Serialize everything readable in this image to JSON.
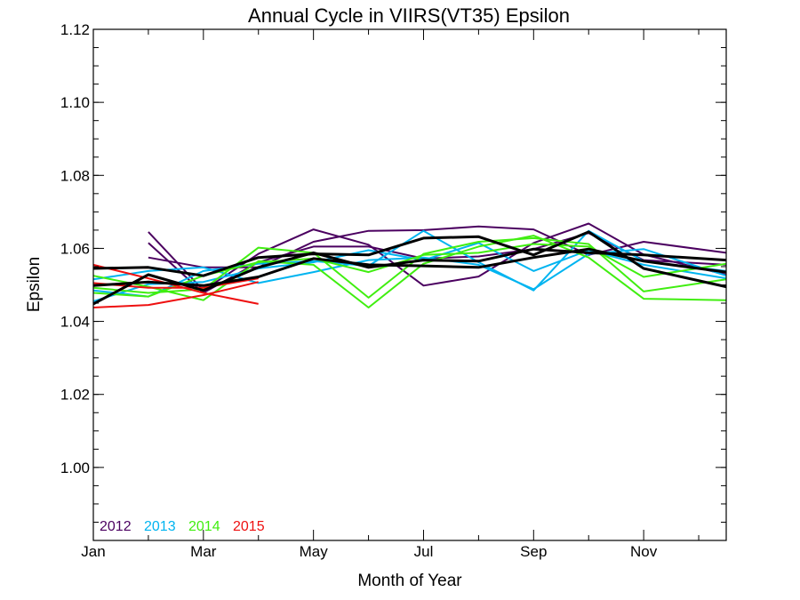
{
  "chart_data": {
    "type": "line",
    "title": "Annual Cycle in VIIRS(VT35) Epsilon",
    "xlabel": "Month of Year",
    "ylabel": "Epsilon",
    "xlim": [
      1,
      12.5
    ],
    "ylim": [
      0.98,
      1.12
    ],
    "x_ticks": [
      {
        "value": 1,
        "label": "Jan"
      },
      {
        "value": 3,
        "label": "Mar"
      },
      {
        "value": 5,
        "label": "May"
      },
      {
        "value": 7,
        "label": "Jul"
      },
      {
        "value": 9,
        "label": "Sep"
      },
      {
        "value": 11,
        "label": "Nov"
      }
    ],
    "x_minor_ticks": [
      2,
      4,
      6,
      8,
      10,
      12
    ],
    "y_ticks": [
      1.0,
      1.02,
      1.04,
      1.06,
      1.08,
      1.1,
      1.12
    ],
    "y_tick_labels": [
      "1.00",
      "1.02",
      "1.04",
      "1.06",
      "1.08",
      "1.10",
      "1.12"
    ],
    "y_minor_step": 0.005,
    "grid": false,
    "legend": {
      "placement": "bottom-left",
      "entries": [
        {
          "label": "2012",
          "color": "#4b0060"
        },
        {
          "label": "2013",
          "color": "#00b4f0"
        },
        {
          "label": "2014",
          "color": "#40ee10"
        },
        {
          "label": "2015",
          "color": "#ee1010"
        }
      ]
    },
    "series": [
      {
        "year": "2012",
        "color": "#4b0060",
        "x": [
          2,
          3,
          4,
          5,
          6,
          7,
          8,
          9,
          10,
          11,
          12.5
        ],
        "values": [
          1.0645,
          1.0485,
          1.0585,
          1.0652,
          1.061,
          1.0498,
          1.0523,
          1.0615,
          1.0668,
          1.0583,
          1.0528
        ]
      },
      {
        "year": "2012",
        "color": "#4b0060",
        "x": [
          2,
          3,
          4,
          5,
          6,
          7,
          8,
          9,
          10,
          11,
          12.5
        ],
        "values": [
          1.0615,
          1.0478,
          1.0562,
          1.0605,
          1.0605,
          1.0572,
          1.0578,
          1.0598,
          1.0642,
          1.0568,
          1.0555
        ]
      },
      {
        "year": "2012",
        "color": "#4b0060",
        "x": [
          2,
          3,
          4,
          5,
          6,
          7,
          8,
          9,
          10,
          11,
          12.5
        ],
        "values": [
          1.0575,
          1.0548,
          1.0548,
          1.0618,
          1.0648,
          1.065,
          1.066,
          1.0652,
          1.0582,
          1.0618,
          1.0588
        ]
      },
      {
        "year": "2013",
        "color": "#00b4f0",
        "x": [
          1,
          2,
          3,
          4,
          5,
          6,
          7,
          8,
          9,
          10,
          11,
          12.5
        ],
        "values": [
          1.0515,
          1.0538,
          1.0548,
          1.0505,
          1.0535,
          1.0568,
          1.0575,
          1.0555,
          1.0488,
          1.0585,
          1.0598,
          1.0525
        ]
      },
      {
        "year": "2013",
        "color": "#00b4f0",
        "x": [
          1,
          2,
          3,
          4,
          5,
          6,
          7,
          8,
          9,
          10,
          11,
          12.5
        ],
        "values": [
          1.0485,
          1.0468,
          1.0538,
          1.0558,
          1.0565,
          1.0552,
          1.0648,
          1.0562,
          1.0485,
          1.0648,
          1.0565,
          1.0538
        ]
      },
      {
        "year": "2013",
        "color": "#00b4f0",
        "x": [
          1,
          2,
          3,
          4,
          5,
          6,
          7,
          8,
          9,
          10,
          11,
          12.5
        ],
        "values": [
          1.0455,
          1.0502,
          1.0508,
          1.0545,
          1.0562,
          1.0595,
          1.0568,
          1.0615,
          1.0538,
          1.0595,
          1.0555,
          1.0518
        ]
      },
      {
        "year": "2014",
        "color": "#40ee10",
        "x": [
          1,
          2,
          3,
          4,
          5,
          6,
          7,
          8,
          9,
          10,
          11,
          12.5
        ],
        "values": [
          1.0525,
          1.0495,
          1.0458,
          1.0565,
          1.0555,
          1.0438,
          1.0558,
          1.0605,
          1.0635,
          1.0575,
          1.0462,
          1.0458
        ]
      },
      {
        "year": "2014",
        "color": "#40ee10",
        "x": [
          1,
          2,
          3,
          4,
          5,
          6,
          7,
          8,
          9,
          10,
          11,
          12.5
        ],
        "values": [
          1.0492,
          1.0478,
          1.0488,
          1.0602,
          1.0588,
          1.0465,
          1.0585,
          1.0618,
          1.0628,
          1.0612,
          1.0482,
          1.0515
        ]
      },
      {
        "year": "2014",
        "color": "#40ee10",
        "x": [
          1,
          2,
          3,
          4,
          5,
          6,
          7,
          8,
          9,
          10,
          11,
          12.5
        ],
        "values": [
          1.0478,
          1.0468,
          1.0525,
          1.0562,
          1.0572,
          1.0535,
          1.0582,
          1.0588,
          1.0612,
          1.0605,
          1.0522,
          1.0558
        ]
      },
      {
        "year": "2015",
        "color": "#ee1010",
        "x": [
          1,
          2,
          3,
          4
        ],
        "values": [
          1.0555,
          1.0518,
          1.0478,
          1.0448
        ]
      },
      {
        "year": "2015",
        "color": "#ee1010",
        "x": [
          1,
          2,
          3,
          4
        ],
        "values": [
          1.0438,
          1.0445,
          1.0472,
          1.0508
        ]
      },
      {
        "year": "2015",
        "color": "#ee1010",
        "x": [
          1,
          2,
          3,
          4
        ],
        "values": [
          1.0505,
          1.0492,
          1.0492,
          1.0518
        ]
      },
      {
        "name": "",
        "color": "#000000",
        "width": 3,
        "x": [
          1,
          2,
          3,
          4,
          5,
          6,
          7,
          8,
          9,
          10,
          11,
          12.5
        ],
        "values": [
          1.0545,
          1.0548,
          1.0525,
          1.0575,
          1.0585,
          1.0582,
          1.0628,
          1.0632,
          1.0582,
          1.0645,
          1.0545,
          1.0495
        ]
      },
      {
        "name": "",
        "color": "#000000",
        "width": 3,
        "x": [
          1,
          2,
          3,
          4,
          5,
          6,
          7,
          8,
          9,
          10,
          11,
          12.5
        ],
        "values": [
          1.0448,
          1.0528,
          1.0485,
          1.0548,
          1.0588,
          1.0548,
          1.0568,
          1.0565,
          1.0598,
          1.0588,
          1.0582,
          1.0568
        ]
      },
      {
        "name": "",
        "color": "#000000",
        "width": 3,
        "x": [
          1,
          2,
          3,
          4,
          5,
          6,
          7,
          8,
          9,
          10,
          11,
          12.5
        ],
        "values": [
          1.0498,
          1.0508,
          1.0498,
          1.0522,
          1.0572,
          1.0555,
          1.0552,
          1.0548,
          1.0575,
          1.0598,
          1.0565,
          1.0535
        ]
      }
    ]
  }
}
